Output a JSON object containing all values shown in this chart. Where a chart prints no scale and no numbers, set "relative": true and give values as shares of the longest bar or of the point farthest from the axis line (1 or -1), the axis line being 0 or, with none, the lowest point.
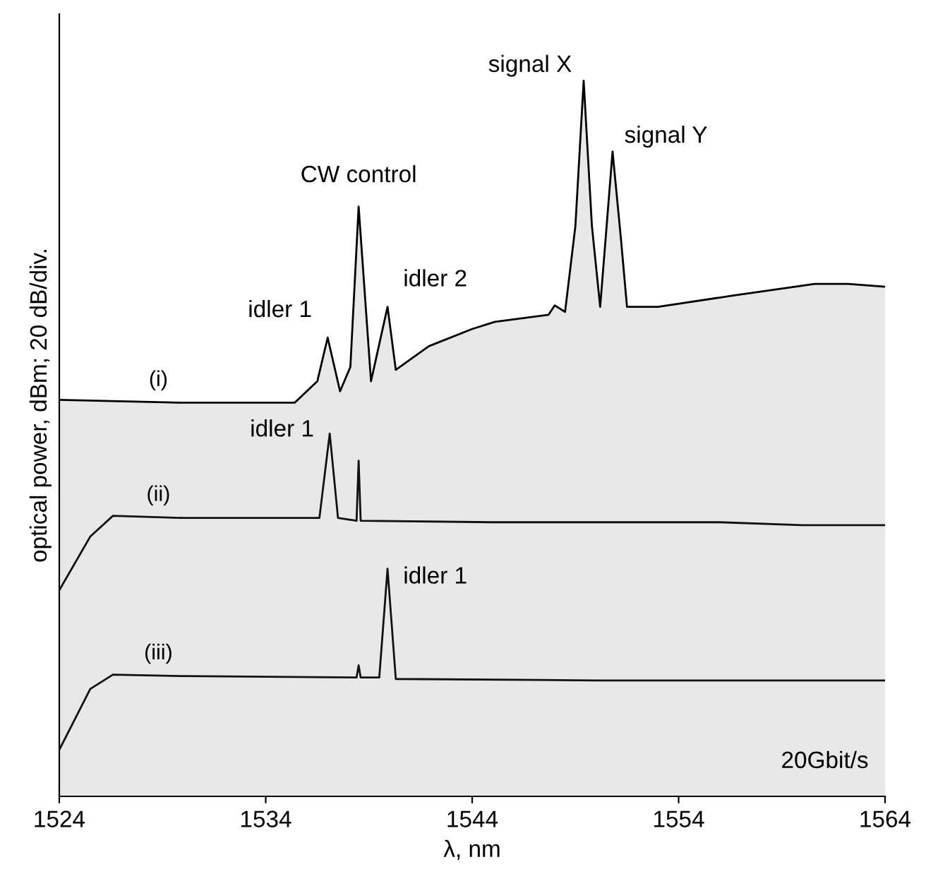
{
  "chart_data": {
    "type": "line",
    "relative": true,
    "xlabel": "λ, nm",
    "ylabel": "optical power, dBm; 20 dB/div.",
    "xlim": [
      1524,
      1564
    ],
    "xticks": [
      1524,
      1534,
      1544,
      1554,
      1564
    ],
    "grid": false,
    "marker": "none",
    "line_style": "solid",
    "series": [
      {
        "name": "(i)",
        "type": "area",
        "color": "#e8e8e8",
        "x": [
          1524,
          1530,
          1535.4,
          1536.5,
          1537.0,
          1537.6,
          1538.1,
          1538.5,
          1539.1,
          1539.9,
          1540.3,
          1541.9,
          1544,
          1545.1,
          1547.7,
          1548.0,
          1548.5,
          1549.0,
          1549.4,
          1549.8,
          1550.2,
          1550.8,
          1551.2,
          1551.5,
          1553.0,
          1556.7,
          1560.6,
          1562.2,
          1564
        ],
        "values": [
          0.554,
          0.55,
          0.55,
          0.58,
          0.641,
          0.566,
          0.6,
          0.824,
          0.58,
          0.684,
          0.596,
          0.629,
          0.653,
          0.663,
          0.673,
          0.686,
          0.677,
          0.797,
          1.0,
          0.797,
          0.684,
          0.901,
          0.781,
          0.684,
          0.684,
          0.7,
          0.716,
          0.716,
          0.712
        ]
      },
      {
        "name": "(ii)",
        "color": "#111111",
        "x": [
          1524,
          1525.5,
          1526.6,
          1530,
          1536.6,
          1537.1,
          1537.5,
          1538.4,
          1538.5,
          1538.6,
          1545,
          1556,
          1560,
          1564
        ],
        "values": [
          0.288,
          0.363,
          0.392,
          0.389,
          0.389,
          0.507,
          0.389,
          0.385,
          0.469,
          0.385,
          0.383,
          0.383,
          0.379,
          0.379
        ]
      },
      {
        "name": "(iii)",
        "color": "#111111",
        "x": [
          1524,
          1525.5,
          1526.6,
          1530,
          1538.4,
          1538.5,
          1538.6,
          1539.5,
          1539.9,
          1540.3,
          1550,
          1564
        ],
        "values": [
          0.065,
          0.15,
          0.17,
          0.168,
          0.166,
          0.183,
          0.166,
          0.166,
          0.318,
          0.164,
          0.162,
          0.162
        ]
      }
    ],
    "annotations": [
      {
        "text": "idler 1",
        "x": 1537.0,
        "y": 0.641
      },
      {
        "text": "CW control",
        "x": 1538.5,
        "y": 0.824
      },
      {
        "text": "idler 2",
        "x": 1539.9,
        "y": 0.684
      },
      {
        "text": "signal X",
        "x": 1549.4,
        "y": 1.0
      },
      {
        "text": "signal Y",
        "x": 1550.8,
        "y": 0.901
      },
      {
        "text": "idler 1",
        "x": 1537.1,
        "y": 0.507
      },
      {
        "text": "idler 1",
        "x": 1539.9,
        "y": 0.318
      },
      "20Gbit/s"
    ]
  }
}
